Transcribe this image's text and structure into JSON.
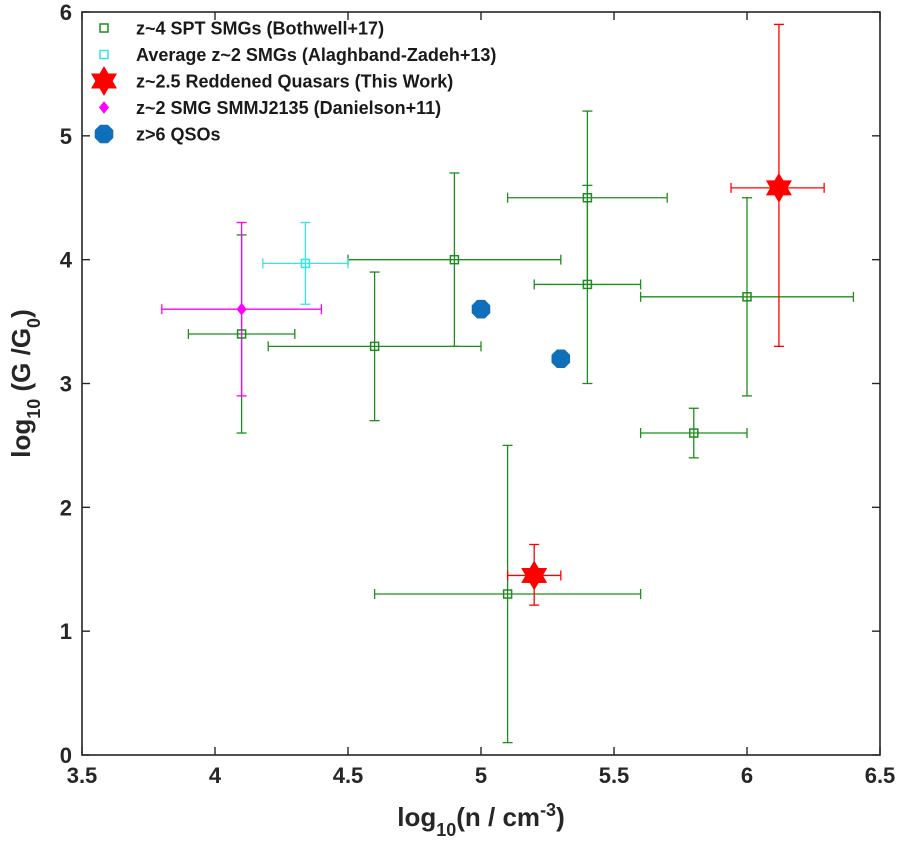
{
  "chart_data": {
    "type": "scatter",
    "xlabel": {
      "pre": "log",
      "sub": "10",
      "post": "(n / cm",
      "sup": "-3",
      "end": ")"
    },
    "ylabel": {
      "pre": "log",
      "sub": "10",
      "post": " (G /G",
      "sub2": "0",
      "end": ")"
    },
    "xlim": [
      3.5,
      6.5
    ],
    "ylim": [
      0,
      6
    ],
    "xticks": [
      "3.5",
      "4",
      "4.5",
      "5",
      "5.5",
      "6",
      "6.5"
    ],
    "yticks": [
      "0",
      "1",
      "2",
      "3",
      "4",
      "5",
      "6"
    ],
    "grid": false,
    "legend_position": "top-left",
    "series": [
      {
        "name": "z~4 SPT SMGs (Bothwell+17)",
        "marker": "square",
        "color": "#1e8c1e",
        "points": [
          {
            "x": 4.1,
            "y": 3.4,
            "xerr": [
              3.9,
              4.3
            ],
            "yerr": [
              2.6,
              4.2
            ]
          },
          {
            "x": 4.6,
            "y": 3.3,
            "xerr": [
              4.2,
              5.0
            ],
            "yerr": [
              2.7,
              3.9
            ]
          },
          {
            "x": 4.9,
            "y": 4.0,
            "xerr": [
              4.5,
              5.3
            ],
            "yerr": [
              3.3,
              4.7
            ]
          },
          {
            "x": 5.1,
            "y": 1.3,
            "xerr": [
              4.6,
              5.6
            ],
            "yerr": [
              0.1,
              2.5
            ]
          },
          {
            "x": 5.4,
            "y": 4.5,
            "xerr": [
              5.1,
              5.7
            ],
            "yerr": [
              3.8,
              5.2
            ]
          },
          {
            "x": 5.4,
            "y": 3.8,
            "xerr": [
              5.2,
              5.6
            ],
            "yerr": [
              3.0,
              4.6
            ]
          },
          {
            "x": 5.8,
            "y": 2.6,
            "xerr": [
              5.6,
              6.0
            ],
            "yerr": [
              2.4,
              2.8
            ]
          },
          {
            "x": 6.0,
            "y": 3.7,
            "xerr": [
              5.6,
              6.4
            ],
            "yerr": [
              2.9,
              4.5
            ]
          }
        ]
      },
      {
        "name": "Average z~2 SMGs (Alaghband-Zadeh+13)",
        "marker": "square",
        "color": "#33e6e6",
        "points": [
          {
            "x": 4.34,
            "y": 3.97,
            "xerr": [
              4.18,
              4.5
            ],
            "yerr": [
              3.64,
              4.3
            ]
          }
        ]
      },
      {
        "name": "z~2.5 Reddened Quasars (This Work)",
        "marker": "hexagram",
        "color": "#ff0000",
        "points": [
          {
            "x": 6.12,
            "y": 4.58,
            "xerr": [
              5.94,
              6.29
            ],
            "yerr": [
              3.3,
              5.9
            ]
          },
          {
            "x": 5.2,
            "y": 1.45,
            "xerr": [
              5.1,
              5.3
            ],
            "yerr": [
              1.21,
              1.7
            ]
          }
        ]
      },
      {
        "name": "z~2 SMG SMMJ2135 (Danielson+11)",
        "marker": "diamond",
        "color": "#ff00ff",
        "points": [
          {
            "x": 4.1,
            "y": 3.6,
            "xerr": [
              3.8,
              4.4
            ],
            "yerr": [
              2.9,
              4.3
            ]
          }
        ]
      },
      {
        "name": "z>6 QSOs",
        "marker": "octagon",
        "color": "#0f6fb8",
        "points": [
          {
            "x": 5.0,
            "y": 3.6
          },
          {
            "x": 5.3,
            "y": 3.2
          }
        ]
      }
    ]
  }
}
